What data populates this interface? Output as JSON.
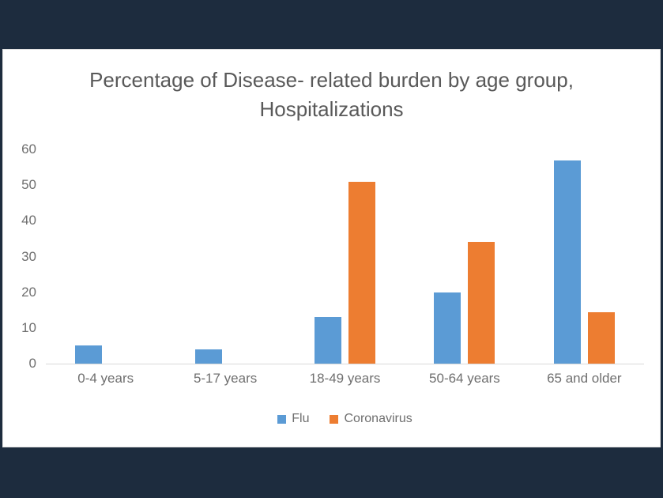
{
  "theme": {
    "background": "#1d2c3e",
    "panel_background": "#ffffff",
    "axis_line_color": "#d9d9d9",
    "title_color": "#595959",
    "tick_label_color": "#6f6f6f"
  },
  "chart_data": {
    "type": "bar",
    "title": "Percentage of Disease- related burden by age group, Hospitalizations",
    "categories": [
      "0-4 years",
      "5-17 years",
      "18-49 years",
      "50-64 years",
      "65 and older"
    ],
    "series": [
      {
        "name": "Flu",
        "color": "#5b9bd5",
        "values": [
          5,
          4,
          13,
          20,
          57
        ]
      },
      {
        "name": "Coronavirus",
        "color": "#ed7d31",
        "values": [
          0,
          0,
          51,
          34,
          14.5
        ]
      }
    ],
    "xlabel": "",
    "ylabel": "",
    "ylim": [
      0,
      60
    ],
    "yticks": [
      0,
      10,
      20,
      30,
      40,
      50,
      60
    ],
    "grid": false,
    "legend_position": "bottom"
  }
}
